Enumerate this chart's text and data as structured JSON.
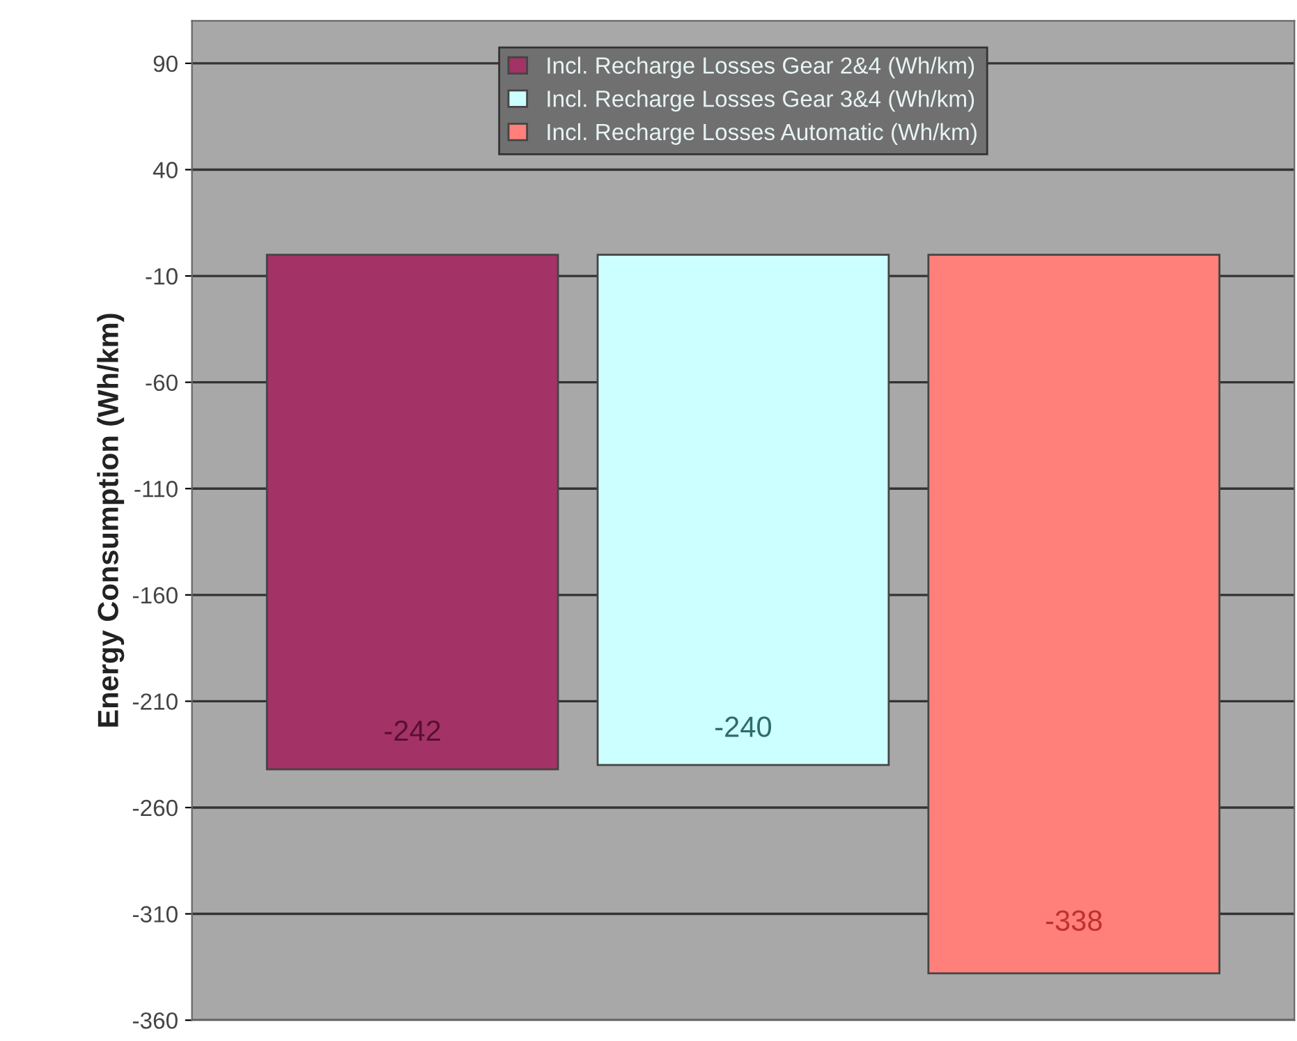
{
  "chart_data": {
    "type": "bar",
    "ylabel": "Energy Consumption (Wh/km)",
    "categories": [
      null
    ],
    "series": [
      {
        "name": "Incl. Recharge Losses Gear 2&4 (Wh/km)",
        "color": "#a33366",
        "values": [
          -242
        ]
      },
      {
        "name": "Incl. Recharge Losses Gear 3&4 (Wh/km)",
        "color": "#ccffff",
        "values": [
          -240
        ]
      },
      {
        "name": "Incl. Recharge Losses Automatic (Wh/km)",
        "color": "#ff7f7a",
        "values": [
          -338
        ]
      }
    ],
    "ylim": [
      -360,
      110
    ],
    "yticks": [
      90,
      40,
      -10,
      -60,
      -110,
      -160,
      -210,
      -260,
      -310,
      -360
    ],
    "grid": "y",
    "legend": "top",
    "data_labels": true
  }
}
